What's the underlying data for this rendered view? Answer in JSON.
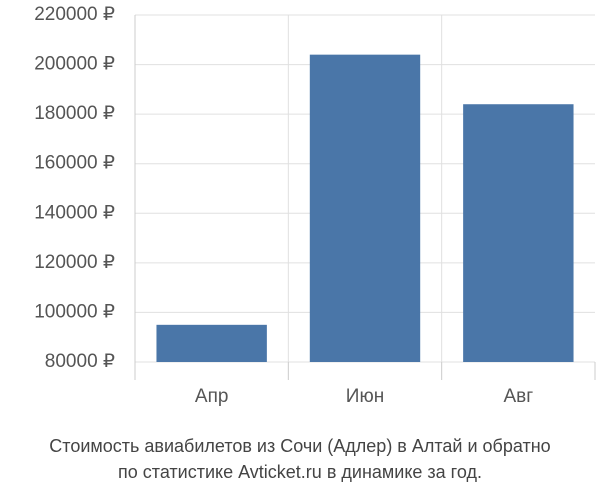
{
  "chart_data": {
    "type": "bar",
    "title": [
      "Стоимость авиабилетов из Сочи (Адлер) в Алтай и обратно",
      "по статистике Avticket.ru в динамике за год."
    ],
    "categories": [
      "Апр",
      "Июн",
      "Авг"
    ],
    "values": [
      95000,
      204000,
      184000
    ],
    "color": "#4a76a8",
    "ylim": [
      80000,
      220000
    ],
    "yticks": [
      {
        "value": 80000,
        "label": "80000 ₽"
      },
      {
        "value": 100000,
        "label": "100000 ₽"
      },
      {
        "value": 120000,
        "label": "120000 ₽"
      },
      {
        "value": 140000,
        "label": "140000 ₽"
      },
      {
        "value": 160000,
        "label": "160000 ₽"
      },
      {
        "value": 180000,
        "label": "180000 ₽"
      },
      {
        "value": 200000,
        "label": "200000 ₽"
      },
      {
        "value": 220000,
        "label": "220000 ₽"
      }
    ],
    "grid": true
  }
}
